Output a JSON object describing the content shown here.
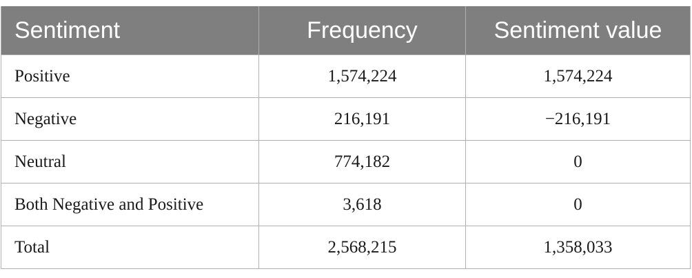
{
  "table": {
    "headers": [
      "Sentiment",
      "Frequency",
      "Sentiment value"
    ],
    "rows": [
      [
        "Positive",
        "1,574,224",
        "1,574,224"
      ],
      [
        "Negative",
        "216,191",
        "−216,191"
      ],
      [
        "Neutral",
        "774,182",
        "0"
      ],
      [
        "Both Negative and Positive",
        "3,618",
        "0"
      ],
      [
        "Total",
        "2,568,215",
        "1,358,033"
      ]
    ]
  },
  "colors": {
    "header_bg": "#7f7f7f",
    "header_text": "#ffffff",
    "border": "#b0b0b0"
  }
}
